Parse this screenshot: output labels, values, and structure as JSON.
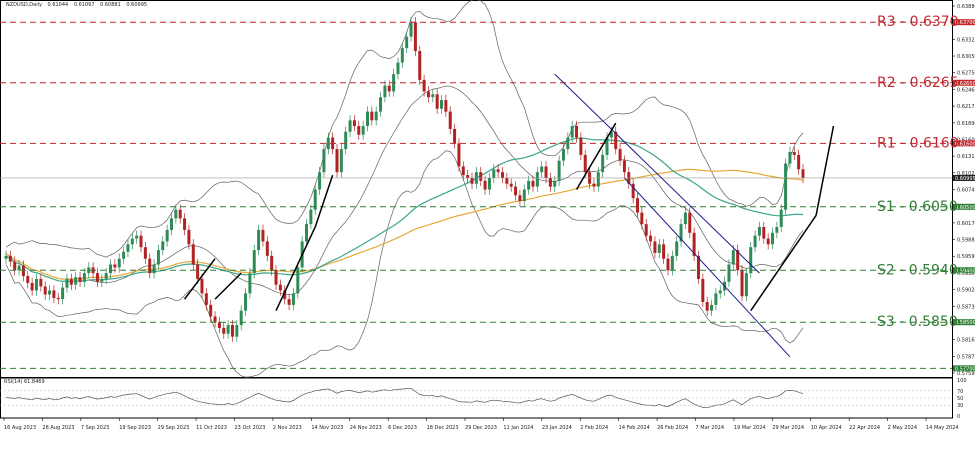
{
  "header": {
    "symbol": "NZDUSD,Daily",
    "open": "0.61044",
    "high": "0.61097",
    "low": "0.60881",
    "close": "0.60995"
  },
  "rsi_header": "RSI(14) 61.8469",
  "colors": {
    "up_candle": "#2e8b57",
    "down_candle": "#b22222",
    "bollinger": "#606060",
    "ma_orange": "#e8a838",
    "ma_green": "#3aa58a",
    "resistance": "#c2272d",
    "support": "#2f7d32",
    "channel": "#1a1a8c",
    "trendline": "#000000"
  },
  "levels": [
    {
      "label": "R3 - 0.6370",
      "value": 0.637,
      "tag": "0.63700",
      "kind": "resistance"
    },
    {
      "label": "R2 - 0.6265",
      "value": 0.6265,
      "tag": "0.62650",
      "kind": "resistance"
    },
    {
      "label": "R1 - 0.6160",
      "value": 0.616,
      "tag": "0.61600",
      "kind": "resistance"
    },
    {
      "label": "S1 - 0.6050",
      "value": 0.605,
      "tag": "0.60500",
      "kind": "support"
    },
    {
      "label": "S2 - 0.5940",
      "value": 0.594,
      "tag": "0.59400",
      "kind": "support"
    },
    {
      "label": "S3 - 0.5850",
      "value": 0.585,
      "tag": "0.58500",
      "kind": "support"
    },
    {
      "label": "",
      "value": 0.577,
      "tag": "0.57700",
      "kind": "support"
    }
  ],
  "current_price_tag": "0.60995",
  "chart_data": {
    "type": "candlestick",
    "title": "NZDUSD,Daily",
    "ylim": [
      0.5755,
      0.6405
    ],
    "yticks": [
      "0.63880",
      "0.63600",
      "0.63325",
      "0.63050",
      "0.62750",
      "0.62465",
      "0.62175",
      "0.61890",
      "0.61600",
      "0.61315",
      "0.61025",
      "0.60745",
      "0.60460",
      "0.60170",
      "0.59885",
      "0.59590",
      "0.59300",
      "0.59020",
      "0.58730",
      "0.58445",
      "0.58165",
      "0.57875",
      "0.57590"
    ],
    "xticks": [
      "16 Aug 2023",
      "28 Aug 2023",
      "7 Sep 2023",
      "19 Sep 2023",
      "29 Sep 2023",
      "11 Oct 2023",
      "23 Oct 2023",
      "2 Nov 2023",
      "14 Nov 2023",
      "24 Nov 2023",
      "6 Dec 2023",
      "18 Dec 2023",
      "29 Dec 2023",
      "11 Jan 2024",
      "23 Jan 2024",
      "2 Feb 2024",
      "14 Feb 2024",
      "26 Feb 2024",
      "7 Mar 2024",
      "19 Mar 2024",
      "29 Mar 2024",
      "10 Apr 2024",
      "22 Apr 2024",
      "2 May 2024",
      "14 May 2024"
    ],
    "closes": [
      0.5965,
      0.5955,
      0.594,
      0.5948,
      0.593,
      0.5918,
      0.5905,
      0.5925,
      0.5912,
      0.5898,
      0.5905,
      0.5892,
      0.589,
      0.591,
      0.5925,
      0.5915,
      0.5928,
      0.592,
      0.5935,
      0.5945,
      0.5935,
      0.592,
      0.5925,
      0.5935,
      0.595,
      0.5945,
      0.596,
      0.5972,
      0.5985,
      0.5995,
      0.6,
      0.598,
      0.596,
      0.5935,
      0.595,
      0.5975,
      0.599,
      0.601,
      0.603,
      0.6045,
      0.603,
      0.601,
      0.5985,
      0.595,
      0.5925,
      0.59,
      0.588,
      0.586,
      0.585,
      0.584,
      0.583,
      0.5845,
      0.5825,
      0.5845,
      0.587,
      0.59,
      0.5935,
      0.5975,
      0.601,
      0.599,
      0.5965,
      0.594,
      0.5915,
      0.5905,
      0.589,
      0.588,
      0.59,
      0.5945,
      0.599,
      0.602,
      0.6045,
      0.608,
      0.611,
      0.615,
      0.617,
      0.615,
      0.611,
      0.615,
      0.618,
      0.62,
      0.619,
      0.6175,
      0.619,
      0.6215,
      0.62,
      0.6215,
      0.624,
      0.626,
      0.625,
      0.628,
      0.63,
      0.6325,
      0.6345,
      0.637,
      0.632,
      0.627,
      0.625,
      0.624,
      0.6245,
      0.622,
      0.6235,
      0.6215,
      0.6185,
      0.616,
      0.612,
      0.6105,
      0.61,
      0.609,
      0.611,
      0.6095,
      0.608,
      0.61,
      0.6115,
      0.611,
      0.61,
      0.609,
      0.6085,
      0.607,
      0.606,
      0.608,
      0.6095,
      0.6085,
      0.611,
      0.612,
      0.61,
      0.6085,
      0.6095,
      0.613,
      0.615,
      0.617,
      0.619,
      0.617,
      0.614,
      0.611,
      0.609,
      0.6085,
      0.611,
      0.614,
      0.617,
      0.618,
      0.615,
      0.613,
      0.611,
      0.609,
      0.6065,
      0.604,
      0.602,
      0.6,
      0.599,
      0.597,
      0.5985,
      0.596,
      0.594,
      0.5965,
      0.599,
      0.602,
      0.604,
      0.6005,
      0.5965,
      0.5925,
      0.5885,
      0.587,
      0.588,
      0.59,
      0.5905,
      0.592,
      0.595,
      0.5975,
      0.594,
      0.5895,
      0.5935,
      0.598,
      0.6,
      0.6015,
      0.5995,
      0.5985,
      0.6005,
      0.6015,
      0.6045,
      0.6125,
      0.6145,
      0.614,
      0.6115,
      0.61
    ]
  },
  "rsi": {
    "levels": [
      "100",
      "70",
      "50",
      "30",
      "0"
    ],
    "values": [
      52,
      50,
      49,
      51,
      48,
      47,
      45,
      50,
      47,
      46,
      49,
      45,
      46,
      50,
      53,
      49,
      51,
      48,
      52,
      54,
      50,
      47,
      49,
      51,
      54,
      52,
      55,
      58,
      60,
      61,
      62,
      57,
      52,
      47,
      51,
      56,
      59,
      62,
      64,
      66,
      62,
      56,
      50,
      45,
      41,
      38,
      36,
      34,
      33,
      32,
      31,
      35,
      31,
      35,
      40,
      46,
      52,
      58,
      63,
      58,
      53,
      48,
      44,
      42,
      40,
      39,
      43,
      51,
      58,
      63,
      66,
      70,
      72,
      74,
      75,
      70,
      63,
      68,
      70,
      71,
      68,
      65,
      67,
      70,
      66,
      68,
      71,
      73,
      70,
      73,
      74,
      75,
      76,
      77,
      68,
      60,
      57,
      56,
      57,
      53,
      56,
      52,
      48,
      45,
      40,
      39,
      39,
      38,
      42,
      40,
      38,
      42,
      44,
      43,
      41,
      40,
      39,
      37,
      36,
      40,
      43,
      41,
      46,
      48,
      44,
      41,
      43,
      50,
      54,
      57,
      60,
      55,
      50,
      45,
      42,
      41,
      46,
      52,
      57,
      58,
      52,
      48,
      45,
      42,
      38,
      35,
      32,
      30,
      30,
      28,
      32,
      28,
      26,
      32,
      38,
      44,
      48,
      40,
      33,
      28,
      24,
      23,
      26,
      30,
      31,
      34,
      40,
      45,
      38,
      31,
      40,
      48,
      52,
      55,
      50,
      48,
      52,
      54,
      60,
      70,
      71,
      70,
      66,
      62
    ]
  },
  "arrows": {
    "up_right": "↗"
  }
}
